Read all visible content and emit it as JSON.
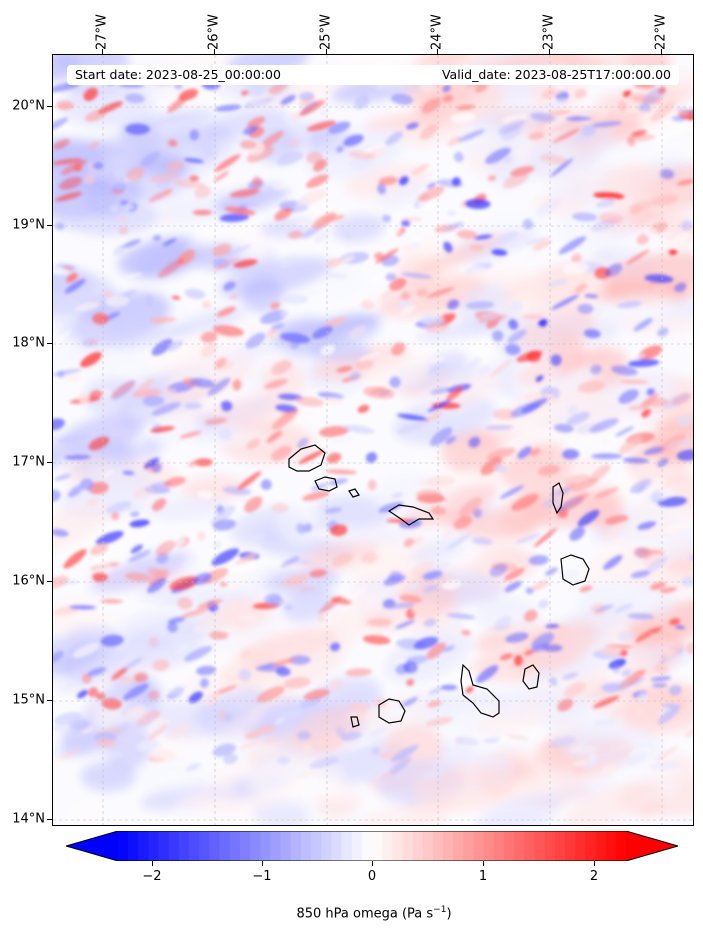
{
  "header": {
    "start_date": "Start date: 2023-08-25_00:00:00",
    "valid_date": "Valid_date: 2023-08-25T17:00:00.00"
  },
  "map": {
    "variable": "850 hPa omega",
    "lon_labels": [
      "27°W",
      "26°W",
      "25°W",
      "24°W",
      "23°W",
      "22°W"
    ],
    "lat_labels": [
      "20°N",
      "19°N",
      "18°N",
      "17°N",
      "16°N",
      "15°N",
      "14°N"
    ],
    "gridlines": "dashed",
    "coastlines": [
      "Santo Antão",
      "São Vicente",
      "Santa Luzia",
      "São Nicolau",
      "Sal",
      "Boa Vista",
      "Maio",
      "Santiago",
      "Fogo",
      "Brava"
    ]
  },
  "colorbar": {
    "title": "850 hPa omega (Pa s",
    "title_sup": "−1",
    "title_end": ")",
    "ticks": [
      "−2",
      "−1",
      "0",
      "1",
      "2"
    ],
    "tick_values": [
      -2,
      -1,
      0,
      1,
      2
    ],
    "range": [
      -2.5,
      2.5
    ],
    "extend": "both",
    "colormap": "bwr",
    "color_low": "#0000ff",
    "color_mid": "#ffffff",
    "color_high": "#ff0000"
  }
}
